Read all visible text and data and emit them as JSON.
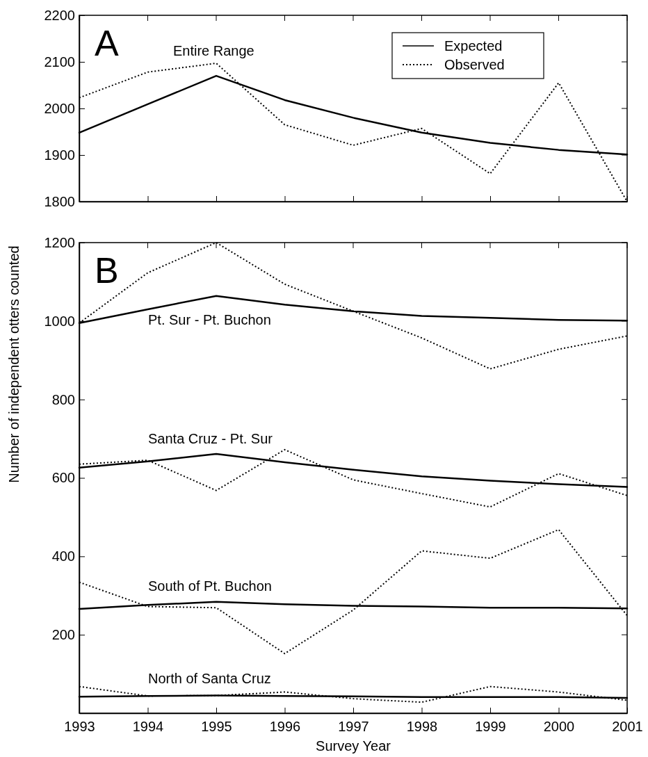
{
  "chart_data": [
    {
      "type": "line",
      "ylabel": "Number of independent otters counted",
      "x": [
        1993,
        1994,
        1995,
        1996,
        1997,
        1998,
        1999,
        2000,
        2001
      ],
      "xlim": [
        1993,
        2001
      ],
      "xticks": [
        1993,
        1994,
        1995,
        1996,
        1997,
        1998,
        1999,
        2000,
        2001
      ],
      "ylim": [
        1800,
        2200
      ],
      "yticks": [
        1800,
        1900,
        2000,
        2100,
        2200
      ],
      "tick_labels": "y",
      "legend": "top right",
      "grid": false,
      "annotations": [
        "A",
        "Entire Range"
      ],
      "series": [
        {
          "name": "Expected",
          "color": "#000000",
          "line_style": "solid",
          "values": [
            1948,
            2009,
            2070,
            2018,
            1980,
            1948,
            1926,
            1911,
            1901
          ]
        },
        {
          "name": "Observed",
          "color": "#000000",
          "line_style": "dotted",
          "values": [
            2023,
            2078,
            2097,
            1965,
            1921,
            1957,
            1860,
            2055,
            1800
          ]
        }
      ]
    },
    {
      "type": "line",
      "xlabel": "Survey Year",
      "x": [
        1993,
        1994,
        1995,
        1996,
        1997,
        1998,
        1999,
        2000,
        2001
      ],
      "xlim": [
        1993,
        2001
      ],
      "xticks": [
        1993,
        1994,
        1995,
        1996,
        1997,
        1998,
        1999,
        2000,
        2001
      ],
      "ylim": [
        0,
        1200
      ],
      "yticks": [
        200,
        400,
        600,
        800,
        1000,
        1200
      ],
      "grid": false,
      "annotations": [
        "B",
        "Pt. Sur - Pt. Buchon",
        "Santa Cruz - Pt. Sur",
        "South of Pt. Buchon",
        "North of Santa Cruz"
      ],
      "series": [
        {
          "color": "#000000",
          "line_style": "solid",
          "values": [
            995,
            1030,
            1064,
            1042,
            1025,
            1013,
            1008,
            1003,
            1001
          ]
        },
        {
          "color": "#000000",
          "line_style": "dotted",
          "values": [
            995,
            1123,
            1200,
            1094,
            1025,
            957,
            878,
            928,
            962
          ]
        },
        {
          "color": "#000000",
          "line_style": "solid",
          "values": [
            626,
            642,
            661,
            640,
            621,
            604,
            593,
            584,
            577
          ]
        },
        {
          "color": "#000000",
          "line_style": "dotted",
          "values": [
            635,
            645,
            568,
            672,
            595,
            560,
            526,
            611,
            555
          ]
        },
        {
          "color": "#000000",
          "line_style": "solid",
          "values": [
            266,
            276,
            284,
            278,
            274,
            272,
            269,
            269,
            267
          ]
        },
        {
          "color": "#000000",
          "line_style": "dotted",
          "values": [
            334,
            272,
            269,
            152,
            263,
            414,
            395,
            468,
            249
          ]
        },
        {
          "color": "#000000",
          "line_style": "solid",
          "values": [
            42,
            44,
            45,
            44,
            43,
            41,
            41,
            41,
            39
          ]
        },
        {
          "color": "#000000",
          "line_style": "dotted",
          "values": [
            68,
            44,
            45,
            54,
            37,
            28,
            68,
            54,
            33
          ]
        }
      ]
    }
  ]
}
